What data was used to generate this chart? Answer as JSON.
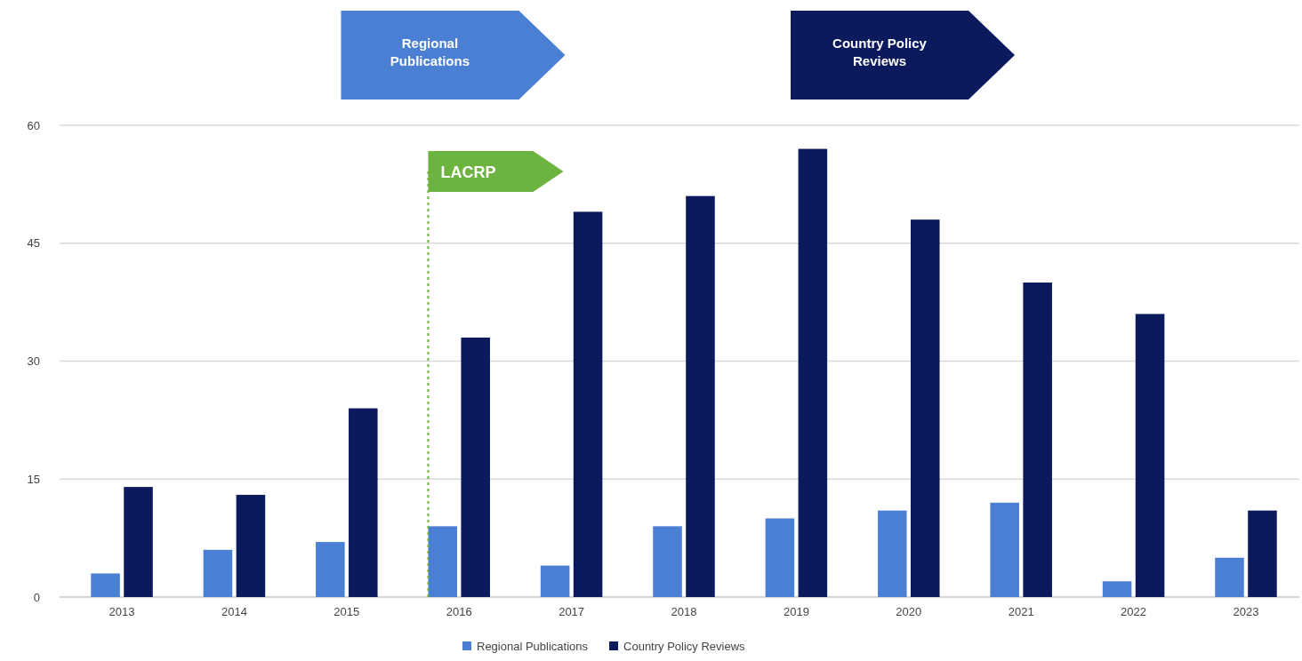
{
  "chart_data": {
    "type": "bar",
    "categories": [
      "2013",
      "2014",
      "2015",
      "2016",
      "2017",
      "2018",
      "2019",
      "2020",
      "2021",
      "2022",
      "2023"
    ],
    "series": [
      {
        "name": "Regional Publications",
        "color": "#4a7fd4",
        "values": [
          3,
          6,
          7,
          9,
          4,
          9,
          10,
          11,
          12,
          2,
          5
        ]
      },
      {
        "name": "Country Policy Reviews",
        "color": "#0b1a5c",
        "values": [
          14,
          13,
          24,
          33,
          49,
          51,
          57,
          48,
          40,
          36,
          11
        ]
      }
    ],
    "ylim": [
      0,
      60
    ],
    "yticks": [
      0,
      15,
      30,
      45,
      60
    ],
    "grid": "y",
    "legend": "bottom",
    "ref_lines": [
      {
        "axis": "x",
        "value": "2016",
        "label": "LACRP",
        "color": "#6db33f",
        "line_style": "dotted"
      }
    ],
    "annotations": [
      "Regional Publications",
      "Country Policy Reviews"
    ]
  }
}
